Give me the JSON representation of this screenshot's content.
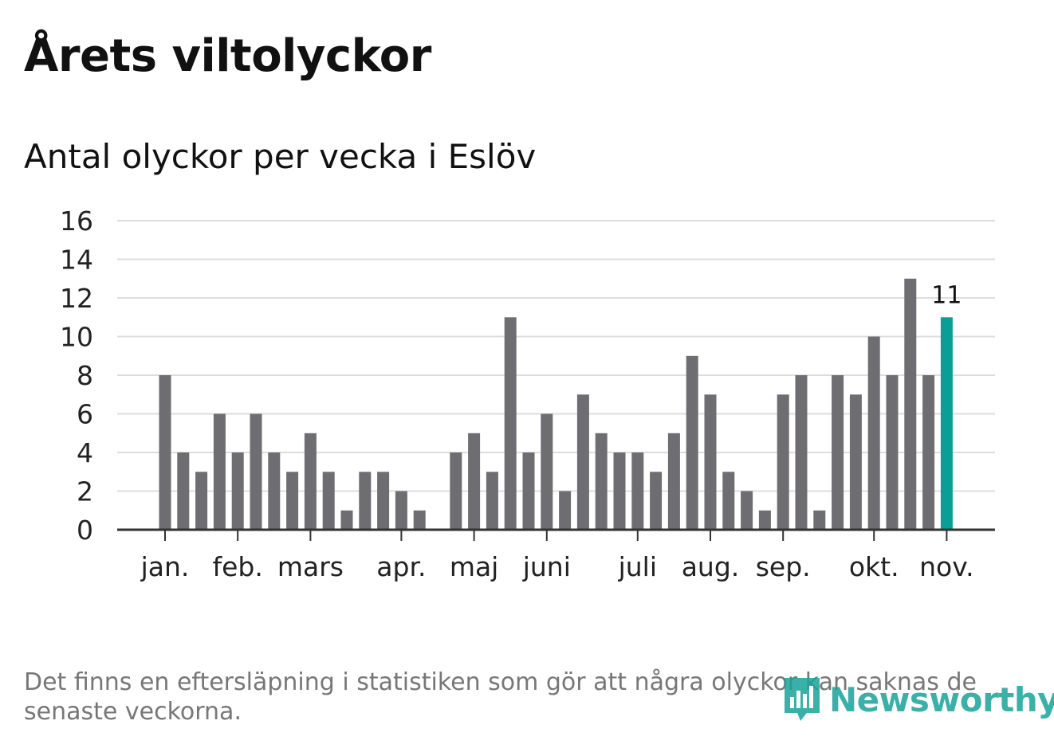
{
  "chart_data": {
    "type": "bar",
    "title": "Årets viltolyckor",
    "subtitle": "Antal olyckor per vecka i Eslöv",
    "xlabel": "",
    "ylabel": "",
    "ylim": [
      0,
      16
    ],
    "yticks": [
      0,
      2,
      4,
      6,
      8,
      10,
      12,
      14,
      16
    ],
    "grid": true,
    "month_labels": [
      {
        "label": "jan.",
        "week": 1
      },
      {
        "label": "feb.",
        "week": 5
      },
      {
        "label": "mars",
        "week": 9
      },
      {
        "label": "apr.",
        "week": 14
      },
      {
        "label": "maj",
        "week": 18
      },
      {
        "label": "juni",
        "week": 22
      },
      {
        "label": "juli",
        "week": 27
      },
      {
        "label": "aug.",
        "week": 31
      },
      {
        "label": "sep.",
        "week": 35
      },
      {
        "label": "okt.",
        "week": 40
      },
      {
        "label": "nov.",
        "week": 44
      }
    ],
    "weeks": [
      1,
      2,
      3,
      4,
      5,
      6,
      7,
      8,
      9,
      10,
      11,
      12,
      13,
      14,
      15,
      16,
      17,
      18,
      19,
      20,
      21,
      22,
      23,
      24,
      25,
      26,
      27,
      28,
      29,
      30,
      31,
      32,
      33,
      34,
      35,
      36,
      37,
      38,
      39,
      40,
      41,
      42,
      43,
      44
    ],
    "values": [
      8,
      4,
      3,
      6,
      4,
      6,
      4,
      3,
      5,
      3,
      1,
      3,
      3,
      2,
      1,
      0,
      4,
      5,
      3,
      11,
      4,
      6,
      2,
      7,
      5,
      4,
      4,
      3,
      5,
      9,
      7,
      3,
      2,
      1,
      7,
      8,
      1,
      8,
      7,
      10,
      8,
      13,
      8,
      11
    ],
    "highlight_index": 43,
    "highlight_label": "11",
    "colors": {
      "bar": "#6e6d72",
      "highlight": "#0a9e96",
      "grid": "#dddddd",
      "axis": "#333333"
    }
  },
  "footnote": "Det finns en eftersläpning i statistiken som gör att några olyckor kan saknas de senaste veckorna.",
  "brand": {
    "name": "Newsworthy",
    "icon": "chart-bubble-icon",
    "color": "#1aa39a"
  }
}
